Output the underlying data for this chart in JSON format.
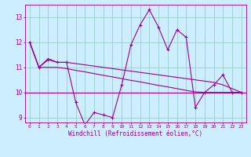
{
  "x": [
    0,
    1,
    2,
    3,
    4,
    5,
    6,
    7,
    8,
    9,
    10,
    11,
    12,
    13,
    14,
    15,
    16,
    17,
    18,
    19,
    20,
    21,
    22,
    23
  ],
  "y_main": [
    12.0,
    11.0,
    11.3,
    11.2,
    11.2,
    9.6,
    8.7,
    9.2,
    9.1,
    9.0,
    10.3,
    11.9,
    12.7,
    13.3,
    12.6,
    11.7,
    12.5,
    12.2,
    9.4,
    10.0,
    10.3,
    10.7,
    10.0,
    10.0
  ],
  "y_upper": [
    12.0,
    11.0,
    11.35,
    11.2,
    11.2,
    11.15,
    11.1,
    11.05,
    11.0,
    10.95,
    10.9,
    10.85,
    10.8,
    10.75,
    10.7,
    10.65,
    10.6,
    10.55,
    10.5,
    10.45,
    10.4,
    10.3,
    10.15,
    10.0
  ],
  "y_lower": [
    12.0,
    11.0,
    11.0,
    11.0,
    10.95,
    10.88,
    10.82,
    10.75,
    10.68,
    10.62,
    10.55,
    10.48,
    10.42,
    10.35,
    10.28,
    10.22,
    10.15,
    10.08,
    10.02,
    10.0,
    10.0,
    10.0,
    10.0,
    10.0
  ],
  "y_flat": 10.0,
  "ylim": [
    8.8,
    13.5
  ],
  "yticks": [
    9,
    10,
    11,
    12,
    13
  ],
  "xticks": [
    0,
    1,
    2,
    3,
    4,
    5,
    6,
    7,
    8,
    9,
    10,
    11,
    12,
    13,
    14,
    15,
    16,
    17,
    18,
    19,
    20,
    21,
    22,
    23
  ],
  "line_color": "#990099",
  "bg_color": "#cceeff",
  "grid_color": "#99cccc",
  "xlabel": "Windchill (Refroidissement éolien,°C)",
  "figsize": [
    3.2,
    2.0
  ],
  "dpi": 100
}
